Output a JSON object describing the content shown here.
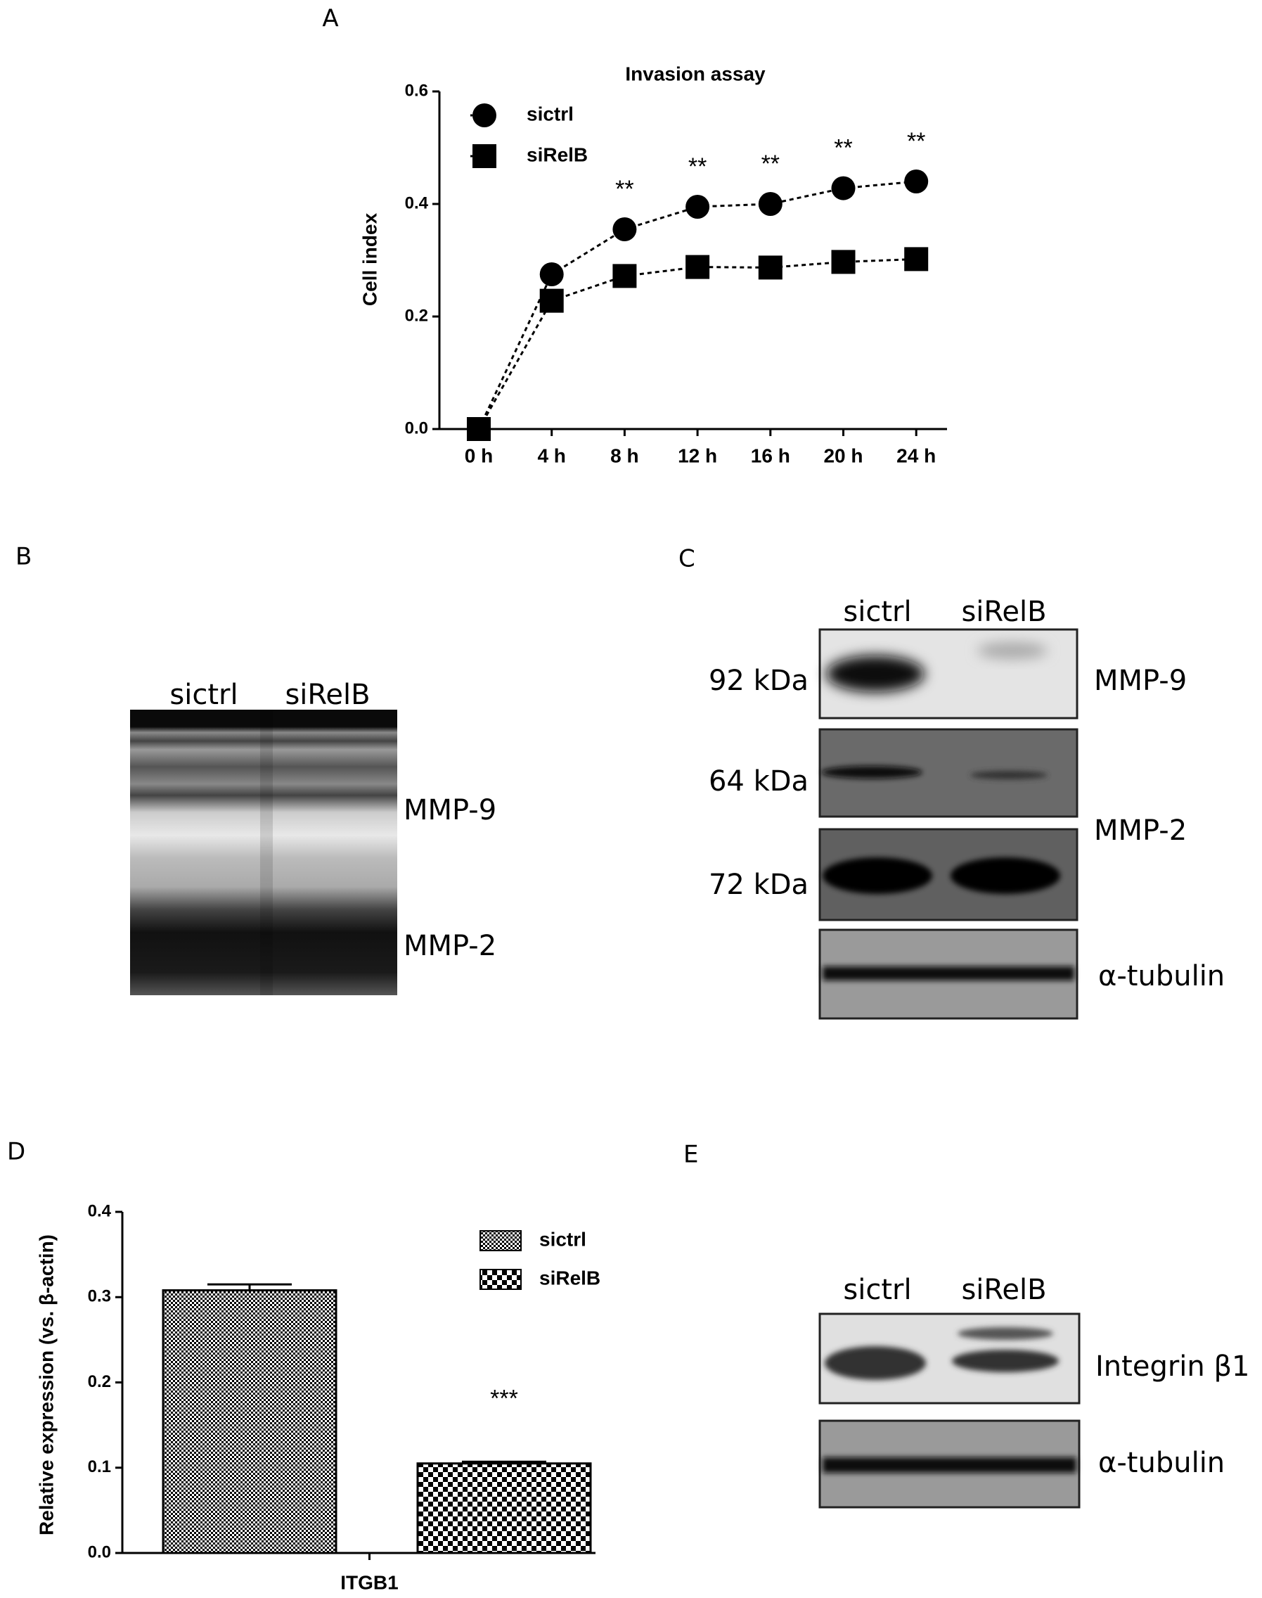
{
  "panel_labels": [
    "A",
    "B",
    "C",
    "D",
    "E"
  ],
  "chart_data": [
    {
      "type": "line",
      "title": "Invasion assay",
      "ylabel": "Cell index",
      "categories": [
        "0 h",
        "4 h",
        "8 h",
        "12 h",
        "16 h",
        "20 h",
        "24 h"
      ],
      "series": [
        {
          "name": "sictrl",
          "color": "#000000",
          "marker": "circle",
          "values": [
            0,
            0.275,
            0.355,
            0.395,
            0.4,
            0.428,
            0.44
          ]
        },
        {
          "name": "siRelB",
          "color": "#000000",
          "marker": "square",
          "values": [
            0,
            0.228,
            0.272,
            0.288,
            0.287,
            0.297,
            0.302
          ]
        }
      ],
      "annotations": [
        {
          "x": "8 h",
          "text": "**"
        },
        {
          "x": "12 h",
          "text": "**"
        },
        {
          "x": "16 h",
          "text": "**"
        },
        {
          "x": "20 h",
          "text": "**"
        },
        {
          "x": "24 h",
          "text": "**"
        }
      ],
      "ylim": [
        0,
        0.6
      ],
      "yticks": [
        {
          "value": 0,
          "label": "0.0"
        },
        0.2,
        0.4,
        0.6
      ],
      "line_style": "dashed",
      "legend": "upper left"
    },
    {
      "type": "bar",
      "ylabel": "Relative expression (vs. β-actin)",
      "categories": [
        "ITGB1"
      ],
      "series": [
        {
          "name": "sictrl",
          "color": "#000000",
          "pattern": "fine-checker",
          "values": [
            0.308
          ],
          "errors": [
            0.007
          ]
        },
        {
          "name": "siRelB",
          "color": "#000000",
          "pattern": "coarse-checker",
          "values": [
            0.105
          ],
          "errors": [
            0.002
          ]
        }
      ],
      "annotations": [
        {
          "series": "siRelB",
          "text": "***"
        }
      ],
      "ylim": [
        0,
        0.4
      ],
      "yticks": [
        {
          "value": 0,
          "label": "0.0"
        },
        0.1,
        0.2,
        0.3,
        0.4
      ],
      "legend": "upper right"
    }
  ],
  "blots": {
    "B": {
      "lanes": [
        "sictrl",
        "siRelB"
      ],
      "bands": [
        "MMP-9",
        "MMP-2"
      ]
    },
    "C": {
      "lanes": [
        "sictrl",
        "siRelB"
      ],
      "sizes": [
        "92 kDa",
        "64 kDa",
        "72 kDa"
      ],
      "proteins": [
        "MMP-9",
        "MMP-2",
        "α-tubulin"
      ]
    },
    "E": {
      "lanes": [
        "sictrl",
        "siRelB"
      ],
      "proteins": [
        "Integrin β1",
        "α-tubulin"
      ]
    }
  }
}
